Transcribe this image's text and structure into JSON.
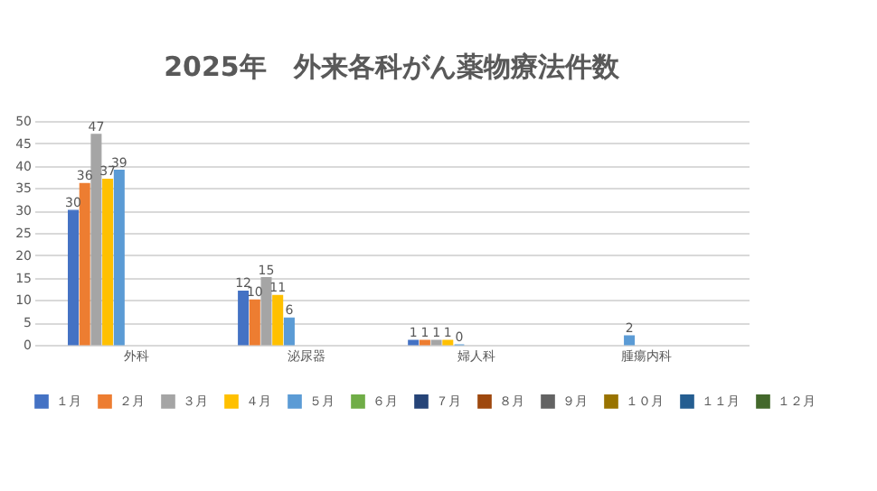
{
  "chart_data": {
    "type": "bar",
    "title": "2025年　外来各科がん薬物療法件数",
    "categories": [
      "外科",
      "泌尿器",
      "婦人科",
      "腫瘍内科"
    ],
    "series": [
      {
        "name": "１月",
        "color": "#4472c4",
        "values": [
          30,
          12,
          1,
          null
        ]
      },
      {
        "name": "２月",
        "color": "#ed7d31",
        "values": [
          36,
          10,
          1,
          null
        ]
      },
      {
        "name": "３月",
        "color": "#a5a5a5",
        "values": [
          47,
          15,
          1,
          null
        ]
      },
      {
        "name": "４月",
        "color": "#ffc000",
        "values": [
          37,
          11,
          1,
          null
        ]
      },
      {
        "name": "５月",
        "color": "#5b9bd5",
        "values": [
          39,
          6,
          0,
          2
        ]
      },
      {
        "name": "６月",
        "color": "#70ad47",
        "values": [
          null,
          null,
          null,
          null
        ]
      },
      {
        "name": "７月",
        "color": "#264478",
        "values": [
          null,
          null,
          null,
          null
        ]
      },
      {
        "name": "８月",
        "color": "#9e480e",
        "values": [
          null,
          null,
          null,
          null
        ]
      },
      {
        "name": "９月",
        "color": "#636363",
        "values": [
          null,
          null,
          null,
          null
        ]
      },
      {
        "name": "１０月",
        "color": "#997300",
        "values": [
          null,
          null,
          null,
          null
        ]
      },
      {
        "name": "１１月",
        "color": "#255e91",
        "values": [
          null,
          null,
          null,
          null
        ]
      },
      {
        "name": "１２月",
        "color": "#43682b",
        "values": [
          null,
          null,
          null,
          null
        ]
      }
    ],
    "ylim": [
      0,
      50
    ],
    "yticks": [
      0,
      5,
      10,
      15,
      20,
      25,
      30,
      35,
      40,
      45,
      50
    ],
    "grid": "y",
    "legend": "bottom",
    "data_labels": true
  }
}
